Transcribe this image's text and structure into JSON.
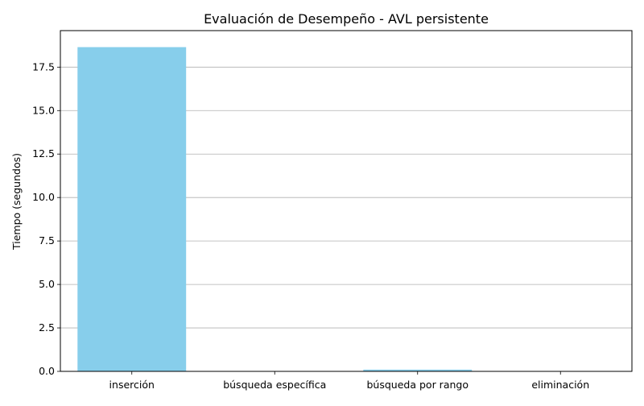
{
  "chart_data": {
    "type": "bar",
    "title": "Evaluación de Desempeño - AVL persistente",
    "xlabel": "",
    "ylabel": "Tiempo (segundos)",
    "categories": [
      "inserción",
      "búsqueda específica",
      "búsqueda por rango",
      "eliminación"
    ],
    "values": [
      18.65,
      0.0005,
      0.1,
      0.0005
    ],
    "ylim": [
      0,
      19.6
    ],
    "yticks": [
      0.0,
      2.5,
      5.0,
      7.5,
      10.0,
      12.5,
      15.0,
      17.5
    ],
    "ytick_labels": [
      "0.0",
      "2.5",
      "5.0",
      "7.5",
      "10.0",
      "12.5",
      "15.0",
      "17.5"
    ],
    "grid": "y-axis major",
    "bar_color": "#87CEEB",
    "grid_color": "#b0b0b0"
  }
}
